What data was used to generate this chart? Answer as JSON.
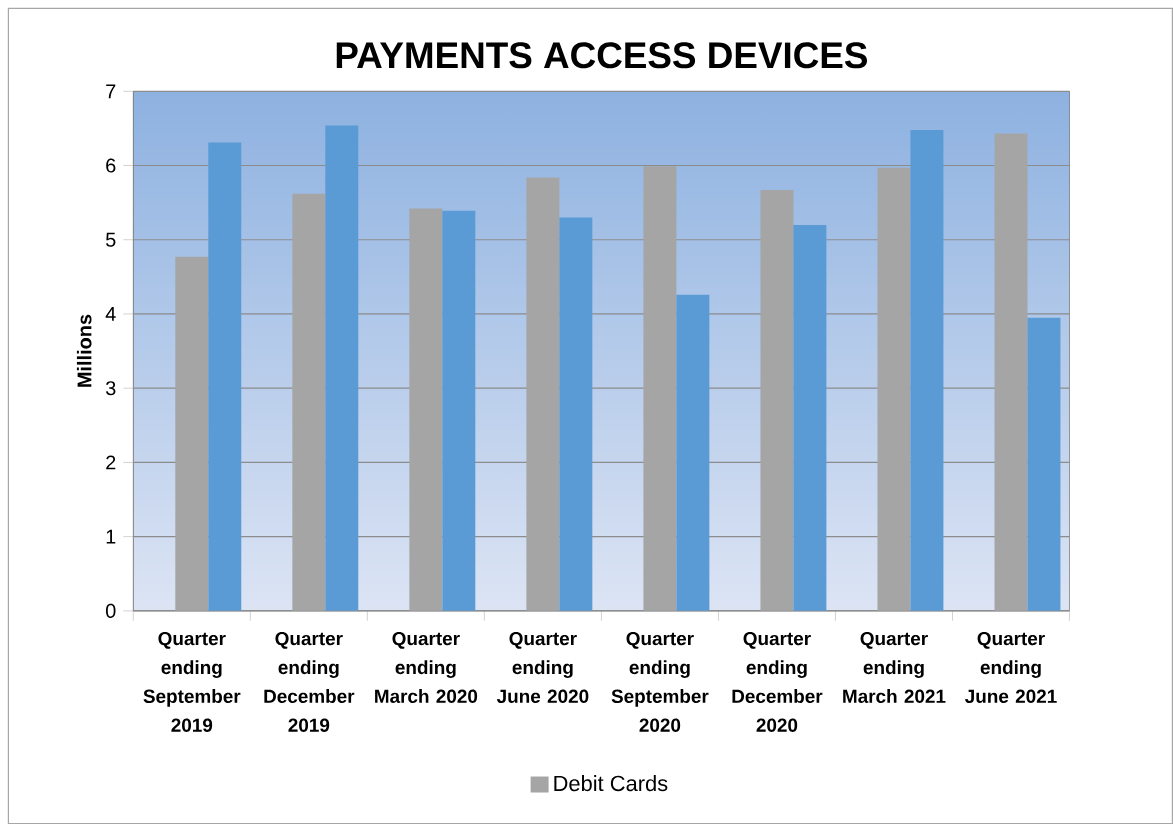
{
  "chart_data": {
    "type": "bar",
    "title": "PAYMENTS ACCESS DEVICES",
    "ylabel": "Millions",
    "categories": [
      "Quarter ending September 2019",
      "Quarter ending December 2019",
      "Quarter ending March 2020",
      "Quarter ending June 2020",
      "Quarter ending September 2020",
      "Quarter ending December 2020",
      "Quarter ending March 2021",
      "Quarter ending June 2021"
    ],
    "series": [
      {
        "name": "Debit Cards",
        "color": "#a5a5a5",
        "values": [
          4.77,
          5.62,
          5.42,
          5.84,
          5.99,
          5.67,
          5.97,
          6.43
        ]
      },
      {
        "color": "#5b9bd5",
        "values": [
          6.31,
          6.54,
          5.39,
          5.3,
          4.26,
          5.2,
          6.48,
          3.95
        ]
      }
    ],
    "ylim": [
      0,
      7
    ],
    "yticks": [
      0,
      1,
      2,
      3,
      4,
      5,
      6,
      7
    ],
    "grid": "y",
    "legend": "bottom"
  }
}
